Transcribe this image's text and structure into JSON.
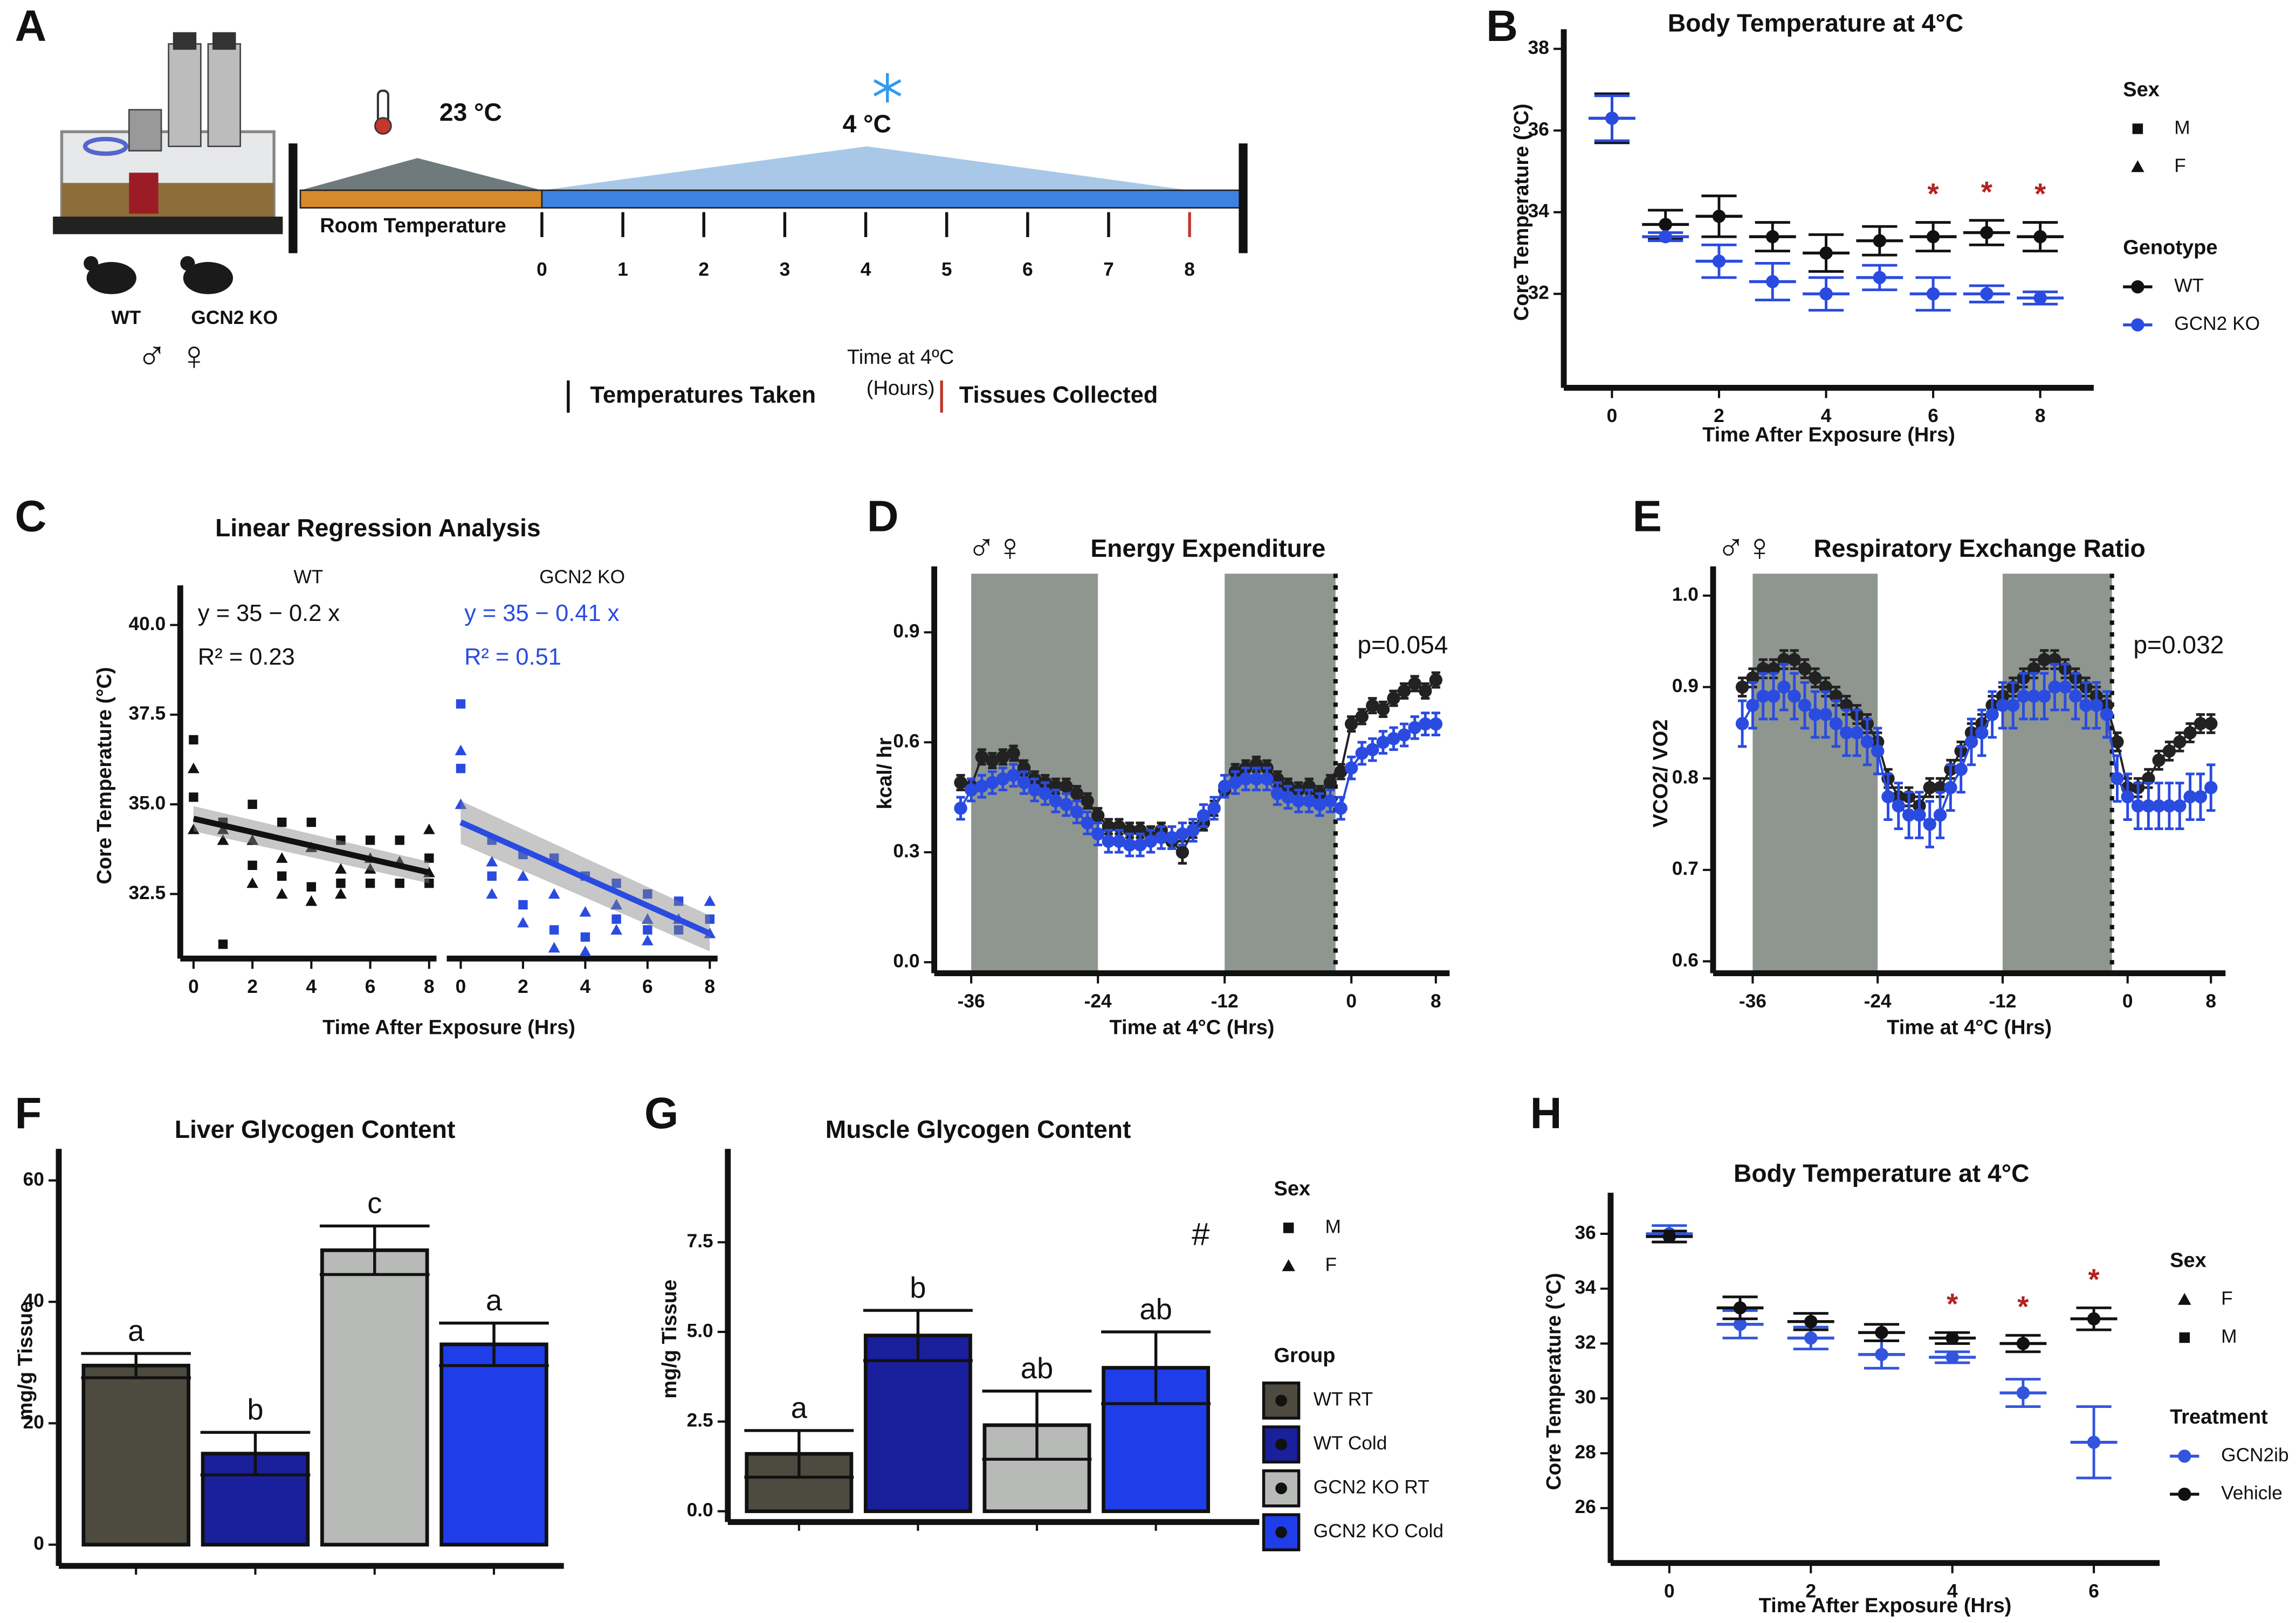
{
  "panel_labels": [
    "A",
    "B",
    "C",
    "D",
    "E",
    "F",
    "G",
    "H"
  ],
  "diagram": {
    "high_temp": "23 °C",
    "low_temp": "4 °C",
    "room_label": "Room Temperature",
    "hours": [
      "0",
      "1",
      "2",
      "3",
      "4",
      "5",
      "6",
      "7",
      "8"
    ],
    "axis_title": "Time at 4ºC",
    "axis_unit": "(Hours)",
    "legend_taken": "Temperatures Taken",
    "legend_collected": "Tissues Collected",
    "genotypes": [
      "WT",
      "GCN2 KO"
    ],
    "sexes": "♂ ♀"
  },
  "chart_data": [
    {
      "type": "errorbar",
      "title": "Body Temperature at 4°C",
      "xlabel": "Time After Exposure (Hrs)",
      "ylabel": "Core Temperature (°C)",
      "xlim": [
        -0.9,
        9.0
      ],
      "ylim": [
        29.7,
        38.3
      ],
      "xticks": [
        0,
        2,
        4,
        6,
        8
      ],
      "yticks": [
        32,
        34,
        36,
        38
      ],
      "x": [
        0,
        1,
        2,
        3,
        4,
        5,
        6,
        7,
        8
      ],
      "series": [
        {
          "name": "WT",
          "color": "#111111",
          "values": [
            36.3,
            33.7,
            33.9,
            33.4,
            33.0,
            33.3,
            33.4,
            33.5,
            33.4
          ],
          "errors": [
            0.6,
            0.35,
            0.5,
            0.35,
            0.45,
            0.35,
            0.35,
            0.3,
            0.35
          ]
        },
        {
          "name": "GCN2 KO",
          "color": "#2a4be0",
          "values": [
            36.3,
            33.4,
            32.8,
            32.3,
            32.0,
            32.4,
            32.0,
            32.0,
            31.9
          ],
          "errors": [
            0.55,
            0.1,
            0.4,
            0.45,
            0.4,
            0.3,
            0.4,
            0.2,
            0.15
          ]
        }
      ],
      "stars": {
        "symbol": "*",
        "x": [
          6,
          7,
          8
        ]
      },
      "sex_legend": {
        "title": "Sex",
        "items": [
          "M",
          "F"
        ],
        "markers": [
          "square",
          "triangle"
        ]
      },
      "legend_title": "Genotype"
    },
    {
      "type": "regression",
      "title": "Linear Regression Analysis",
      "xlabel": "Time After Exposure (Hrs)",
      "ylabel": "Core Temperature (°C)",
      "xlim": [
        -0.45,
        8.25
      ],
      "ylim": [
        30.7,
        40.9
      ],
      "xticks": [
        0,
        2,
        4,
        6,
        8
      ],
      "yticks": [
        32.5,
        {
          "value": 35,
          "label": "35.0"
        },
        37.5,
        {
          "value": 40,
          "label": "40.0"
        }
      ],
      "facets": [
        {
          "name": "WT",
          "color": "#111111",
          "equation": "y = 35 − 0.2 x",
          "r2": "R² = 0.23",
          "points": {
            "x": [
              0,
              0,
              0,
              0,
              1,
              1,
              1,
              1,
              2,
              2,
              2,
              2,
              3,
              3,
              3,
              3,
              4,
              4,
              4,
              4,
              5,
              5,
              5,
              5,
              6,
              6,
              6,
              6,
              7,
              7,
              7,
              8,
              8,
              8,
              8
            ],
            "y": [
              36.8,
              36.0,
              35.2,
              34.3,
              34.5,
              34.0,
              31.1,
              34.3,
              35.0,
              34.0,
              33.3,
              32.8,
              34.5,
              33.5,
              33.0,
              32.5,
              34.5,
              33.8,
              32.7,
              32.3,
              34.0,
              33.2,
              32.8,
              32.5,
              34.0,
              33.5,
              32.8,
              33.2,
              34.0,
              33.4,
              32.8,
              34.3,
              33.5,
              33.1,
              32.8
            ]
          },
          "fit": {
            "x": [
              0,
              8
            ],
            "y": [
              34.6,
              33.1
            ]
          },
          "ci": [
            0.35,
            0.3
          ]
        },
        {
          "name": "GCN2 KO",
          "color": "#2a4be0",
          "equation": "y = 35 − 0.41 x",
          "r2": "R² = 0.51",
          "points": {
            "x": [
              0,
              0,
              0,
              0,
              1,
              1,
              1,
              1,
              2,
              2,
              2,
              2,
              3,
              3,
              3,
              3,
              4,
              4,
              4,
              4,
              5,
              5,
              5,
              5,
              6,
              6,
              6,
              6,
              7,
              7,
              7,
              8,
              8,
              8
            ],
            "y": [
              37.8,
              36.5,
              36.0,
              35.0,
              34.0,
              33.4,
              33.0,
              32.5,
              33.6,
              33.0,
              32.2,
              31.7,
              33.5,
              32.5,
              31.5,
              31.0,
              33.0,
              32.0,
              31.3,
              30.9,
              32.8,
              32.2,
              31.8,
              31.5,
              32.5,
              31.8,
              31.5,
              31.2,
              32.3,
              31.8,
              31.5,
              32.3,
              31.8,
              31.4
            ]
          },
          "fit": {
            "x": [
              0,
              8
            ],
            "y": [
              34.5,
              31.4
            ]
          },
          "ci": [
            0.6,
            0.5
          ]
        }
      ]
    },
    {
      "type": "timecourse",
      "title": "Energy Expenditure",
      "sexes": "♂♀",
      "xlabel": "Time at 4°C (Hrs)",
      "ylabel": "kcal/ hr",
      "xlim": [
        -39.5,
        9.3
      ],
      "ylim": [
        -0.03,
        1.06
      ],
      "xticks": [
        -36,
        -24,
        -12,
        0,
        8
      ],
      "yticks": [
        {
          "value": 0,
          "label": "0.0"
        },
        0.3,
        0.6,
        0.9
      ],
      "periods": [
        [
          -36,
          -24
        ],
        [
          -12,
          -1.5
        ]
      ],
      "vline": -1.5,
      "p_label": "p=0.054",
      "x": [
        -37,
        -36,
        -35,
        -34,
        -33,
        -32,
        -31,
        -30,
        -29,
        -28,
        -27,
        -26,
        -25,
        -24,
        -23,
        -22,
        -21,
        -20,
        -19,
        -18,
        -17,
        -16,
        -15,
        -14,
        -13,
        -12,
        -11,
        -10,
        -9,
        -8,
        -7,
        -6,
        -5,
        -4,
        -3,
        -2,
        -1,
        0,
        1,
        2,
        3,
        4,
        5,
        6,
        7,
        8
      ],
      "series": [
        {
          "name": "WT",
          "color": "#222222",
          "values": [
            0.49,
            0.48,
            0.56,
            0.55,
            0.56,
            0.57,
            0.53,
            0.5,
            0.49,
            0.48,
            0.48,
            0.46,
            0.44,
            0.4,
            0.37,
            0.37,
            0.36,
            0.36,
            0.35,
            0.36,
            0.33,
            0.3,
            0.36,
            0.38,
            0.42,
            0.47,
            0.52,
            0.53,
            0.54,
            0.53,
            0.5,
            0.48,
            0.47,
            0.48,
            0.46,
            0.49,
            0.52,
            0.65,
            0.67,
            0.7,
            0.69,
            0.72,
            0.74,
            0.76,
            0.74,
            0.77
          ],
          "errors": [
            0.02,
            0.02,
            0.02,
            0.02,
            0.02,
            0.02,
            0.02,
            0.02,
            0.02,
            0.02,
            0.02,
            0.02,
            0.02,
            0.02,
            0.02,
            0.02,
            0.02,
            0.02,
            0.02,
            0.02,
            0.02,
            0.03,
            0.02,
            0.02,
            0.02,
            0.02,
            0.02,
            0.02,
            0.02,
            0.02,
            0.02,
            0.02,
            0.02,
            0.02,
            0.02,
            0.02,
            0.02,
            0.02,
            0.02,
            0.02,
            0.02,
            0.02,
            0.02,
            0.02,
            0.02,
            0.02
          ]
        },
        {
          "name": "GCN2 KO",
          "color": "#2a4be0",
          "values": [
            0.42,
            0.47,
            0.48,
            0.49,
            0.5,
            0.51,
            0.49,
            0.47,
            0.46,
            0.44,
            0.43,
            0.41,
            0.38,
            0.35,
            0.33,
            0.33,
            0.32,
            0.32,
            0.33,
            0.34,
            0.34,
            0.35,
            0.36,
            0.4,
            0.42,
            0.48,
            0.49,
            0.5,
            0.5,
            0.5,
            0.46,
            0.45,
            0.44,
            0.44,
            0.43,
            0.44,
            0.42,
            0.53,
            0.57,
            0.58,
            0.6,
            0.61,
            0.62,
            0.64,
            0.65,
            0.65
          ],
          "errors": [
            0.03,
            0.03,
            0.03,
            0.03,
            0.03,
            0.03,
            0.03,
            0.03,
            0.03,
            0.03,
            0.03,
            0.03,
            0.03,
            0.03,
            0.03,
            0.03,
            0.03,
            0.03,
            0.03,
            0.03,
            0.03,
            0.03,
            0.03,
            0.03,
            0.03,
            0.03,
            0.03,
            0.03,
            0.03,
            0.03,
            0.03,
            0.03,
            0.03,
            0.03,
            0.03,
            0.03,
            0.03,
            0.03,
            0.03,
            0.03,
            0.03,
            0.03,
            0.03,
            0.03,
            0.03,
            0.03
          ]
        }
      ]
    },
    {
      "type": "timecourse",
      "title": "Respiratory Exchange Ratio",
      "sexes": "♂♀",
      "xlabel": "Time at 4°C (Hrs)",
      "ylabel": "VCO2/ VO2",
      "xlim": [
        -39.8,
        9.4
      ],
      "ylim": [
        0.587,
        1.024
      ],
      "xticks": [
        -36,
        -24,
        -12,
        0,
        8
      ],
      "yticks": [
        0.6,
        0.7,
        0.8,
        0.9,
        {
          "value": 1,
          "label": "1.0"
        }
      ],
      "periods": [
        [
          -36,
          -24
        ],
        [
          -12,
          -1.5
        ]
      ],
      "vline": -1.5,
      "p_label": "p=0.032",
      "x": [
        -37,
        -36,
        -35,
        -34,
        -33,
        -32,
        -31,
        -30,
        -29,
        -28,
        -27,
        -26,
        -25,
        -24,
        -23,
        -22,
        -21,
        -20,
        -19,
        -18,
        -17,
        -16,
        -15,
        -14,
        -13,
        -12,
        -11,
        -10,
        -9,
        -8,
        -7,
        -6,
        -5,
        -4,
        -3,
        -2,
        -1,
        0,
        1,
        2,
        3,
        4,
        5,
        6,
        7,
        8
      ],
      "series": [
        {
          "name": "WT",
          "color": "#222222",
          "values": [
            0.9,
            0.91,
            0.92,
            0.92,
            0.93,
            0.93,
            0.92,
            0.91,
            0.9,
            0.89,
            0.88,
            0.87,
            0.86,
            0.84,
            0.8,
            0.78,
            0.78,
            0.77,
            0.79,
            0.79,
            0.81,
            0.83,
            0.85,
            0.86,
            0.88,
            0.89,
            0.9,
            0.91,
            0.92,
            0.93,
            0.93,
            0.92,
            0.91,
            0.9,
            0.89,
            0.88,
            0.84,
            0.79,
            0.79,
            0.8,
            0.82,
            0.83,
            0.84,
            0.85,
            0.86,
            0.86
          ],
          "errors": [
            0.01,
            0.01,
            0.01,
            0.01,
            0.01,
            0.01,
            0.01,
            0.01,
            0.01,
            0.01,
            0.01,
            0.01,
            0.01,
            0.01,
            0.01,
            0.01,
            0.01,
            0.01,
            0.01,
            0.01,
            0.01,
            0.01,
            0.01,
            0.01,
            0.01,
            0.01,
            0.01,
            0.01,
            0.01,
            0.01,
            0.01,
            0.01,
            0.01,
            0.01,
            0.01,
            0.01,
            0.01,
            0.01,
            0.01,
            0.01,
            0.01,
            0.01,
            0.01,
            0.01,
            0.01,
            0.01
          ]
        },
        {
          "name": "GCN2 KO",
          "color": "#2a4be0",
          "values": [
            0.86,
            0.88,
            0.89,
            0.89,
            0.9,
            0.89,
            0.88,
            0.87,
            0.87,
            0.86,
            0.85,
            0.85,
            0.84,
            0.83,
            0.78,
            0.77,
            0.76,
            0.76,
            0.75,
            0.76,
            0.79,
            0.81,
            0.84,
            0.85,
            0.87,
            0.88,
            0.88,
            0.89,
            0.89,
            0.89,
            0.9,
            0.9,
            0.89,
            0.88,
            0.88,
            0.87,
            0.8,
            0.78,
            0.77,
            0.77,
            0.77,
            0.77,
            0.77,
            0.78,
            0.78,
            0.79
          ],
          "errors": [
            0.025,
            0.025,
            0.025,
            0.025,
            0.025,
            0.025,
            0.025,
            0.025,
            0.025,
            0.025,
            0.025,
            0.025,
            0.025,
            0.025,
            0.025,
            0.025,
            0.025,
            0.025,
            0.025,
            0.025,
            0.025,
            0.025,
            0.025,
            0.025,
            0.025,
            0.025,
            0.025,
            0.025,
            0.025,
            0.025,
            0.025,
            0.025,
            0.025,
            0.025,
            0.025,
            0.025,
            0.025,
            0.025,
            0.025,
            0.025,
            0.025,
            0.025,
            0.025,
            0.025,
            0.025,
            0.025
          ]
        }
      ]
    },
    {
      "type": "bar",
      "title": "Liver Glycogen Content",
      "ylabel": "mg/g Tissue",
      "categories": [
        null,
        null,
        null,
        null
      ],
      "values": [
        29.5,
        15,
        48.5,
        33
      ],
      "errors": [
        2,
        3.5,
        4,
        3.5
      ],
      "colors": [
        "#4d4a3f",
        "#1a1f9c",
        "#b8bab8",
        "#1f3de8"
      ],
      "letters": [
        "a",
        "b",
        "c",
        "a"
      ],
      "ylim": [
        -3.5,
        64
      ],
      "yticks": [
        0,
        20,
        40,
        60
      ]
    },
    {
      "type": "bar",
      "title": "Muscle Glycogen Content",
      "ylabel": "mg/g Tissue",
      "categories": [
        null,
        null,
        null,
        null
      ],
      "values": [
        1.6,
        4.9,
        2.4,
        4.0
      ],
      "errors": [
        0.65,
        0.7,
        0.95,
        1.0
      ],
      "colors": [
        "#4d4a3f",
        "#1a1f9c",
        "#b8bab8",
        "#1f3de8"
      ],
      "letters": [
        "a",
        "b",
        "ab",
        "ab"
      ],
      "annotation": "#",
      "ylim": [
        -0.3,
        9.9
      ],
      "yticks": [
        {
          "value": 0,
          "label": "0.0"
        },
        2.5,
        {
          "value": 5,
          "label": "5.0"
        },
        7.5
      ],
      "sex_legend": {
        "title": "Sex",
        "items": [
          "M",
          "F"
        ],
        "markers": [
          "square",
          "triangle"
        ]
      },
      "legend_title": "Group",
      "legend_items": [
        "WT RT",
        "WT Cold",
        "GCN2 KO RT",
        "GCN2 KO Cold"
      ]
    },
    {
      "type": "errorbar",
      "title": "Body Temperature at 4°C",
      "xlabel": "Time After Exposure (Hrs)",
      "ylabel": "Core Temperature (°C)",
      "xlim": [
        -0.83,
        6.93
      ],
      "ylim": [
        24.0,
        37.23
      ],
      "xticks": [
        0,
        2,
        4,
        6
      ],
      "yticks": [
        26,
        28,
        30,
        32,
        34,
        36
      ],
      "x": [
        0,
        1,
        2,
        3,
        4,
        5,
        6
      ],
      "series": [
        {
          "name": "GCN2ib",
          "color": "#3355dd",
          "values": [
            36.0,
            32.7,
            32.2,
            31.6,
            31.5,
            30.2,
            28.4
          ],
          "errors": [
            0.3,
            0.5,
            0.4,
            0.5,
            0.2,
            0.5,
            1.3
          ]
        },
        {
          "name": "Vehicle",
          "color": "#111111",
          "values": [
            35.9,
            33.3,
            32.8,
            32.4,
            32.2,
            32.0,
            32.9
          ],
          "errors": [
            0.2,
            0.4,
            0.3,
            0.3,
            0.2,
            0.3,
            0.4
          ]
        }
      ],
      "stars": {
        "symbol": "*",
        "x": [
          4,
          5,
          6
        ]
      },
      "sex_legend": {
        "title": "Sex",
        "items": [
          "F",
          "M"
        ],
        "markers": [
          "triangle",
          "square"
        ]
      },
      "legend_title": "Treatment"
    }
  ]
}
